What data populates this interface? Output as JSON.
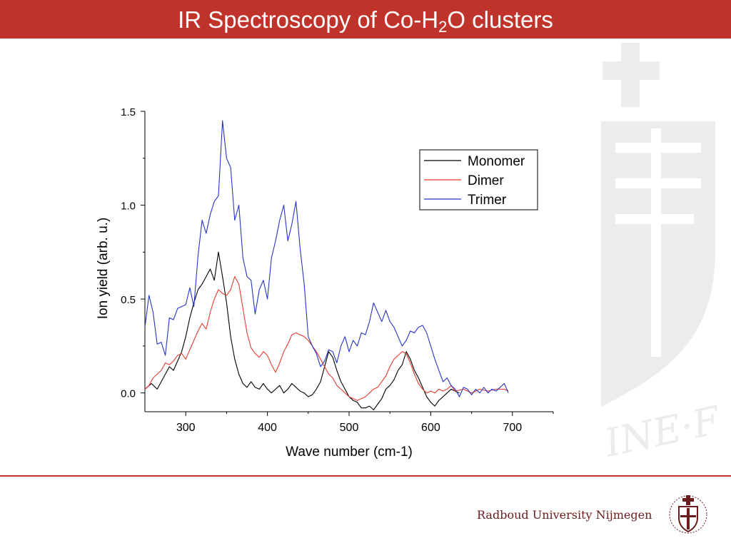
{
  "slide": {
    "title_pre": "IR Spectroscopy of Co-H",
    "title_sub": "2",
    "title_post": "O clusters",
    "footer_text": "Radboud University Nijmegen",
    "watermark_text": "INE·F",
    "colors": {
      "title_bar": "#c0332a",
      "footer_rule": "#c0332a",
      "footer_text": "#6b1c1c",
      "watermark": "#ececec"
    }
  },
  "chart_data": {
    "type": "line",
    "title": "",
    "xlabel": "Wave number (cm-1)",
    "ylabel": "Ion yield (arb. u.)",
    "xlim": [
      250,
      750
    ],
    "ylim": [
      -0.1,
      1.5
    ],
    "xticks": [
      300,
      400,
      500,
      600,
      700
    ],
    "xtick_labels": [
      "300",
      "400",
      "500",
      "600",
      "700"
    ],
    "yticks": [
      0.0,
      0.5,
      1.0,
      1.5
    ],
    "ytick_labels": [
      "0.0",
      "0.5",
      "1.0",
      "1.5"
    ],
    "grid": false,
    "legend_position": "top-right",
    "series": [
      {
        "name": "Monomer",
        "color": "#000000",
        "points": [
          [
            250,
            0.02
          ],
          [
            258,
            0.05
          ],
          [
            265,
            0.02
          ],
          [
            270,
            0.06
          ],
          [
            275,
            0.1
          ],
          [
            280,
            0.14
          ],
          [
            285,
            0.12
          ],
          [
            290,
            0.17
          ],
          [
            295,
            0.22
          ],
          [
            300,
            0.3
          ],
          [
            305,
            0.4
          ],
          [
            310,
            0.48
          ],
          [
            315,
            0.55
          ],
          [
            320,
            0.58
          ],
          [
            325,
            0.62
          ],
          [
            330,
            0.66
          ],
          [
            335,
            0.6
          ],
          [
            340,
            0.75
          ],
          [
            345,
            0.62
          ],
          [
            350,
            0.48
          ],
          [
            355,
            0.3
          ],
          [
            360,
            0.18
          ],
          [
            365,
            0.1
          ],
          [
            370,
            0.05
          ],
          [
            375,
            0.03
          ],
          [
            380,
            0.06
          ],
          [
            385,
            0.03
          ],
          [
            390,
            0.02
          ],
          [
            395,
            0.05
          ],
          [
            400,
            0.02
          ],
          [
            405,
            0.0
          ],
          [
            410,
            0.02
          ],
          [
            415,
            0.04
          ],
          [
            420,
            0.0
          ],
          [
            425,
            0.02
          ],
          [
            430,
            0.05
          ],
          [
            435,
            0.03
          ],
          [
            440,
            0.01
          ],
          [
            445,
            0.0
          ],
          [
            450,
            -0.02
          ],
          [
            455,
            -0.01
          ],
          [
            460,
            0.02
          ],
          [
            465,
            0.06
          ],
          [
            470,
            0.14
          ],
          [
            475,
            0.22
          ],
          [
            480,
            0.19
          ],
          [
            485,
            0.12
          ],
          [
            490,
            0.06
          ],
          [
            495,
            0.02
          ],
          [
            500,
            -0.02
          ],
          [
            505,
            -0.04
          ],
          [
            510,
            -0.05
          ],
          [
            515,
            -0.08
          ],
          [
            520,
            -0.08
          ],
          [
            525,
            -0.07
          ],
          [
            530,
            -0.09
          ],
          [
            535,
            -0.06
          ],
          [
            540,
            -0.03
          ],
          [
            545,
            0.02
          ],
          [
            550,
            0.04
          ],
          [
            555,
            0.07
          ],
          [
            560,
            0.12
          ],
          [
            565,
            0.15
          ],
          [
            570,
            0.22
          ],
          [
            575,
            0.18
          ],
          [
            580,
            0.12
          ],
          [
            585,
            0.08
          ],
          [
            590,
            0.03
          ],
          [
            595,
            -0.02
          ],
          [
            600,
            -0.05
          ],
          [
            605,
            -0.07
          ],
          [
            610,
            -0.04
          ],
          [
            615,
            -0.02
          ],
          [
            620,
            0.0
          ],
          [
            625,
            0.02
          ],
          [
            630,
            0.01
          ],
          [
            635,
            0.0
          ]
        ]
      },
      {
        "name": "Dimer",
        "color": "#e83a2e",
        "points": [
          [
            250,
            0.02
          ],
          [
            255,
            0.04
          ],
          [
            260,
            0.08
          ],
          [
            265,
            0.1
          ],
          [
            270,
            0.12
          ],
          [
            275,
            0.16
          ],
          [
            280,
            0.15
          ],
          [
            285,
            0.17
          ],
          [
            290,
            0.2
          ],
          [
            295,
            0.21
          ],
          [
            300,
            0.18
          ],
          [
            305,
            0.23
          ],
          [
            310,
            0.28
          ],
          [
            315,
            0.33
          ],
          [
            320,
            0.37
          ],
          [
            325,
            0.34
          ],
          [
            330,
            0.43
          ],
          [
            335,
            0.5
          ],
          [
            340,
            0.55
          ],
          [
            345,
            0.53
          ],
          [
            350,
            0.52
          ],
          [
            355,
            0.55
          ],
          [
            360,
            0.62
          ],
          [
            365,
            0.58
          ],
          [
            370,
            0.45
          ],
          [
            375,
            0.32
          ],
          [
            380,
            0.24
          ],
          [
            385,
            0.21
          ],
          [
            390,
            0.19
          ],
          [
            395,
            0.22
          ],
          [
            400,
            0.2
          ],
          [
            405,
            0.15
          ],
          [
            410,
            0.11
          ],
          [
            415,
            0.16
          ],
          [
            420,
            0.22
          ],
          [
            425,
            0.26
          ],
          [
            430,
            0.31
          ],
          [
            435,
            0.32
          ],
          [
            440,
            0.31
          ],
          [
            445,
            0.3
          ],
          [
            450,
            0.28
          ],
          [
            455,
            0.25
          ],
          [
            460,
            0.22
          ],
          [
            465,
            0.18
          ],
          [
            470,
            0.14
          ],
          [
            475,
            0.1
          ],
          [
            480,
            0.08
          ],
          [
            485,
            0.04
          ],
          [
            490,
            0.02
          ],
          [
            495,
            0.0
          ],
          [
            500,
            -0.02
          ],
          [
            505,
            -0.03
          ],
          [
            510,
            -0.04
          ],
          [
            515,
            -0.03
          ],
          [
            520,
            -0.02
          ],
          [
            525,
            0.0
          ],
          [
            530,
            0.02
          ],
          [
            535,
            0.03
          ],
          [
            540,
            0.06
          ],
          [
            545,
            0.09
          ],
          [
            550,
            0.14
          ],
          [
            555,
            0.18
          ],
          [
            560,
            0.2
          ],
          [
            565,
            0.22
          ],
          [
            570,
            0.21
          ],
          [
            575,
            0.16
          ],
          [
            580,
            0.1
          ],
          [
            585,
            0.05
          ],
          [
            590,
            0.02
          ],
          [
            595,
            0.0
          ],
          [
            600,
            0.01
          ],
          [
            605,
            0.0
          ],
          [
            610,
            0.02
          ],
          [
            615,
            0.01
          ],
          [
            620,
            0.02
          ],
          [
            625,
            0.04
          ],
          [
            630,
            0.01
          ],
          [
            640,
            0.02
          ],
          [
            650,
            0.0
          ],
          [
            660,
            0.02
          ],
          [
            670,
            0.01
          ],
          [
            680,
            0.02
          ],
          [
            690,
            0.02
          ],
          [
            695,
            0.01
          ]
        ]
      },
      {
        "name": "Trimer",
        "color": "#2635c9",
        "points": [
          [
            250,
            0.35
          ],
          [
            255,
            0.52
          ],
          [
            260,
            0.43
          ],
          [
            265,
            0.26
          ],
          [
            270,
            0.27
          ],
          [
            275,
            0.2
          ],
          [
            280,
            0.4
          ],
          [
            285,
            0.39
          ],
          [
            290,
            0.45
          ],
          [
            295,
            0.46
          ],
          [
            300,
            0.47
          ],
          [
            305,
            0.56
          ],
          [
            310,
            0.46
          ],
          [
            315,
            0.73
          ],
          [
            320,
            0.92
          ],
          [
            325,
            0.85
          ],
          [
            330,
            0.95
          ],
          [
            335,
            1.02
          ],
          [
            340,
            1.05
          ],
          [
            345,
            1.45
          ],
          [
            350,
            1.25
          ],
          [
            355,
            1.2
          ],
          [
            360,
            0.92
          ],
          [
            365,
            1.0
          ],
          [
            370,
            0.72
          ],
          [
            375,
            0.62
          ],
          [
            380,
            0.6
          ],
          [
            385,
            0.42
          ],
          [
            390,
            0.55
          ],
          [
            395,
            0.6
          ],
          [
            400,
            0.5
          ],
          [
            405,
            0.72
          ],
          [
            410,
            0.81
          ],
          [
            415,
            0.92
          ],
          [
            420,
            1.0
          ],
          [
            425,
            0.81
          ],
          [
            430,
            0.9
          ],
          [
            435,
            1.02
          ],
          [
            440,
            0.77
          ],
          [
            445,
            0.58
          ],
          [
            450,
            0.3
          ],
          [
            455,
            0.25
          ],
          [
            460,
            0.21
          ],
          [
            465,
            0.14
          ],
          [
            470,
            0.17
          ],
          [
            475,
            0.23
          ],
          [
            480,
            0.22
          ],
          [
            485,
            0.16
          ],
          [
            490,
            0.25
          ],
          [
            495,
            0.3
          ],
          [
            500,
            0.22
          ],
          [
            505,
            0.28
          ],
          [
            510,
            0.25
          ],
          [
            515,
            0.32
          ],
          [
            520,
            0.31
          ],
          [
            525,
            0.38
          ],
          [
            530,
            0.48
          ],
          [
            535,
            0.43
          ],
          [
            540,
            0.38
          ],
          [
            545,
            0.44
          ],
          [
            550,
            0.38
          ],
          [
            555,
            0.35
          ],
          [
            560,
            0.3
          ],
          [
            565,
            0.25
          ],
          [
            570,
            0.28
          ],
          [
            575,
            0.33
          ],
          [
            580,
            0.32
          ],
          [
            585,
            0.35
          ],
          [
            590,
            0.36
          ],
          [
            595,
            0.32
          ],
          [
            600,
            0.25
          ],
          [
            605,
            0.18
          ],
          [
            610,
            0.12
          ],
          [
            615,
            0.06
          ],
          [
            620,
            0.08
          ],
          [
            625,
            0.04
          ],
          [
            630,
            0.02
          ],
          [
            635,
            -0.02
          ],
          [
            640,
            0.03
          ],
          [
            645,
            0.02
          ],
          [
            650,
            -0.01
          ],
          [
            655,
            0.02
          ],
          [
            660,
            0.0
          ],
          [
            665,
            0.03
          ],
          [
            670,
            0.0
          ],
          [
            675,
            0.02
          ],
          [
            680,
            0.01
          ],
          [
            685,
            0.03
          ],
          [
            690,
            0.05
          ],
          [
            695,
            0.0
          ]
        ]
      }
    ]
  }
}
